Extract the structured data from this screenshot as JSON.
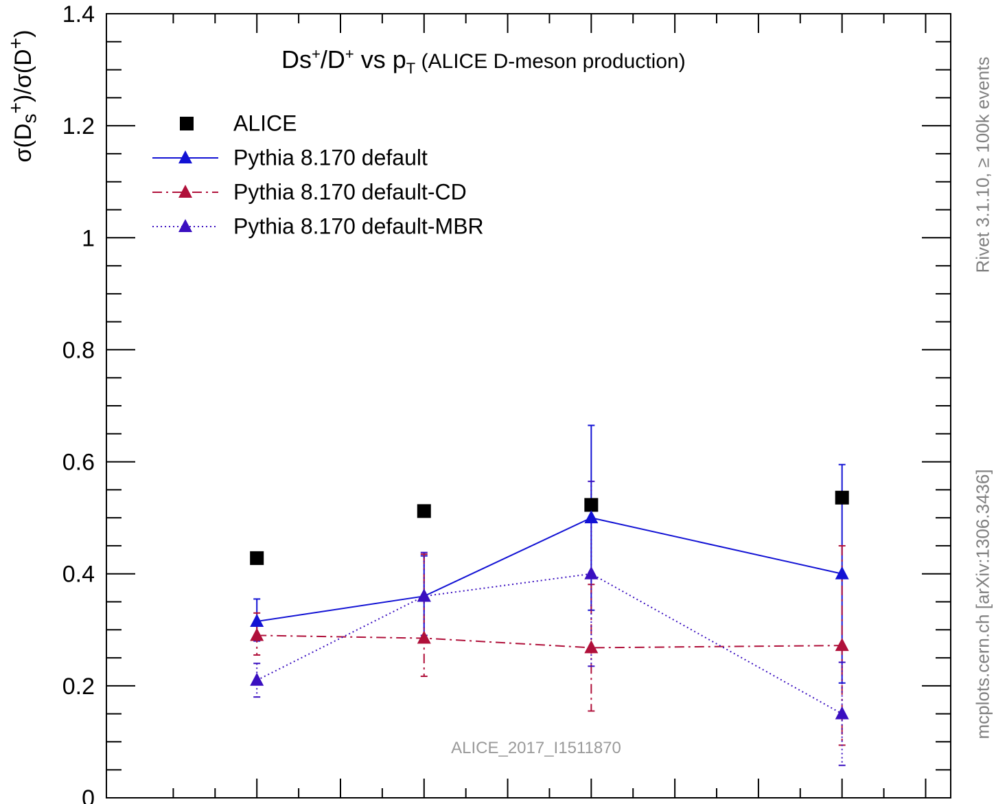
{
  "chart_data": {
    "type": "line",
    "title": {
      "prefix": "Ds",
      "sup1": "+",
      "mid": "/D",
      "sup2": "+",
      "vs": " vs p",
      "sub": "T",
      "suffix": " (ALICE D-meson production)"
    },
    "ylabel": "σ(D_s⁺)/σ(D⁺)",
    "ylim": [
      0,
      1.4
    ],
    "yticks": [
      "0",
      "0.2",
      "0.4",
      "0.6",
      "0.8",
      "1",
      "1.2",
      "1.4"
    ],
    "x": [
      3,
      5,
      7,
      10
    ],
    "xlim": [
      1.2,
      11.3
    ],
    "series": [
      {
        "name": "ALICE",
        "color": "#000000",
        "marker": "square",
        "line": "none",
        "values": [
          0.428,
          0.512,
          0.523,
          0.536
        ],
        "err_low": [
          0,
          0,
          0,
          0
        ],
        "err_high": [
          0,
          0,
          0,
          0
        ]
      },
      {
        "name": "Pythia 8.170 default",
        "color": "#1212d4",
        "marker": "triangle",
        "line": "solid",
        "values": [
          0.315,
          0.36,
          0.5,
          0.4
        ],
        "err_low": [
          0.035,
          0.075,
          0.165,
          0.195
        ],
        "err_high": [
          0.04,
          0.072,
          0.165,
          0.195
        ]
      },
      {
        "name": "Pythia 8.170 default-CD",
        "color": "#b0103a",
        "marker": "triangle",
        "line": "dashdot",
        "values": [
          0.29,
          0.285,
          0.268,
          0.272
        ],
        "err_low": [
          0.035,
          0.068,
          0.113,
          0.178
        ],
        "err_high": [
          0.04,
          0.15,
          0.113,
          0.178
        ]
      },
      {
        "name": "Pythia 8.170 default-MBR",
        "color": "#3a0fc0",
        "marker": "triangle",
        "line": "dotted",
        "values": [
          0.21,
          0.36,
          0.4,
          0.15
        ],
        "err_low": [
          0.03,
          0.07,
          0.165,
          0.092
        ],
        "err_high": [
          0.03,
          0.078,
          0.165,
          0.092
        ]
      }
    ],
    "legend_position": "top-left"
  },
  "annotations": {
    "side_label_top": "Rivet 3.1.10, ≥ 100k events",
    "side_label_bottom": "mcplots.cern.ch [arXiv:1306.3436]",
    "watermark": "ALICE_2017_I1511870"
  }
}
